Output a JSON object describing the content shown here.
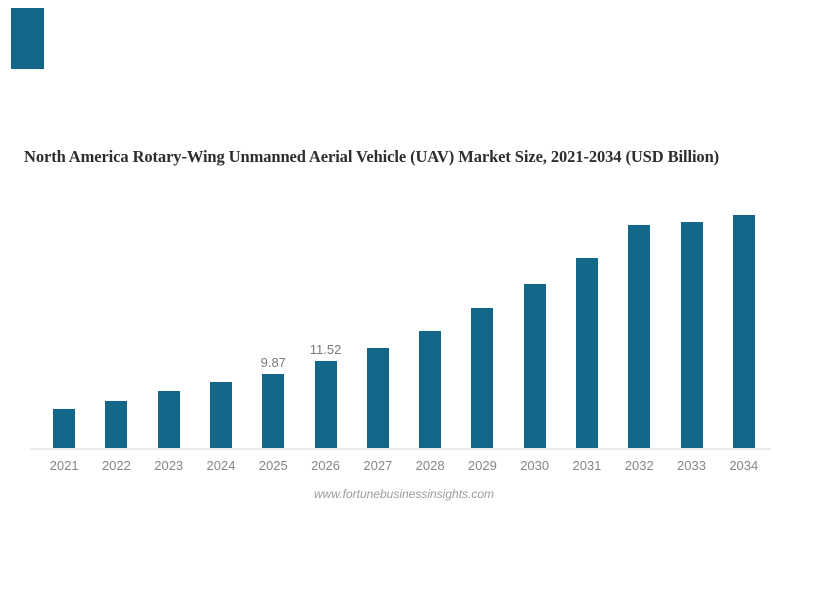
{
  "title": "North America Rotary-Wing Unmanned Aerial Vehicle (UAV) Market Size, 2021-2034 (USD Billion)",
  "source": "www.fortunebusinessinsights.com",
  "brand_color": "#136789",
  "chart_data": {
    "type": "bar",
    "title": "North America Rotary-Wing Unmanned Aerial Vehicle (UAV) Market Size, 2021-2034 (USD Billion)",
    "unit": "USD Billion",
    "categories": [
      "2021",
      "2022",
      "2023",
      "2024",
      "2025",
      "2026",
      "2027",
      "2028",
      "2029",
      "2030",
      "2031",
      "2032",
      "2033",
      "2034"
    ],
    "values": [
      5.2,
      6.25,
      7.55,
      8.8,
      9.87,
      11.52,
      13.3,
      15.55,
      18.6,
      21.8,
      25.25,
      29.6,
      30.0,
      30.95
    ],
    "data_labels": [
      "",
      "",
      "",
      "",
      "9.87",
      "11.52",
      "",
      "",
      "",
      "",
      "",
      "",
      "",
      ""
    ],
    "bar_color": "#136789",
    "data_label_color": "#7a7a7a",
    "axis_label_color": "#868686",
    "axis_line_color": "#eaeaea",
    "ylim": [
      0,
      33
    ],
    "grid": false,
    "legend": false,
    "xlabel": "",
    "ylabel": ""
  }
}
